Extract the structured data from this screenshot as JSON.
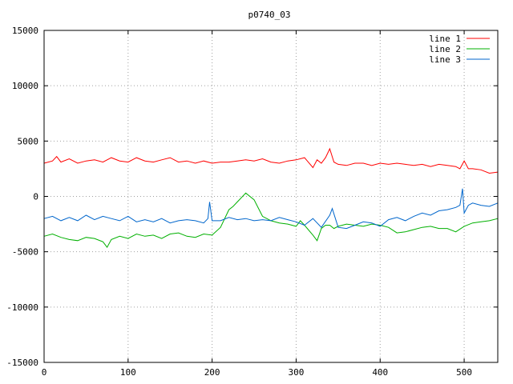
{
  "chart_data": {
    "type": "line",
    "title": "p0740_03",
    "xlabel": "",
    "ylabel": "",
    "xlim": [
      0,
      540
    ],
    "ylim": [
      -15000,
      15000
    ],
    "x_ticks": [
      0,
      100,
      200,
      300,
      400,
      500
    ],
    "y_ticks": [
      -15000,
      -10000,
      -5000,
      0,
      5000,
      10000,
      15000
    ],
    "grid": true,
    "legend_position": "top-right",
    "series": [
      {
        "name": "line 1",
        "color": "#ff0000",
        "x": [
          0,
          10,
          15,
          20,
          30,
          40,
          50,
          60,
          70,
          80,
          90,
          100,
          110,
          120,
          130,
          140,
          150,
          160,
          170,
          180,
          190,
          200,
          210,
          220,
          230,
          240,
          250,
          260,
          270,
          280,
          290,
          300,
          310,
          320,
          325,
          330,
          335,
          340,
          345,
          350,
          360,
          370,
          380,
          390,
          400,
          410,
          420,
          430,
          440,
          450,
          460,
          470,
          480,
          490,
          495,
          500,
          505,
          510,
          520,
          530,
          540
        ],
        "values": [
          3000,
          3200,
          3600,
          3100,
          3400,
          3000,
          3200,
          3300,
          3100,
          3500,
          3200,
          3100,
          3500,
          3200,
          3100,
          3300,
          3500,
          3100,
          3200,
          3000,
          3200,
          3000,
          3100,
          3100,
          3200,
          3300,
          3200,
          3400,
          3100,
          3000,
          3200,
          3300,
          3500,
          2600,
          3300,
          3000,
          3500,
          4300,
          3100,
          2900,
          2800,
          3000,
          3000,
          2800,
          3000,
          2900,
          3000,
          2900,
          2800,
          2900,
          2700,
          2900,
          2800,
          2700,
          2500,
          3200,
          2500,
          2500,
          2400,
          2100,
          2200
        ]
      },
      {
        "name": "line 2",
        "color": "#00b000",
        "x": [
          0,
          10,
          20,
          30,
          40,
          50,
          60,
          70,
          75,
          80,
          90,
          100,
          110,
          120,
          130,
          140,
          150,
          160,
          170,
          180,
          190,
          200,
          210,
          220,
          225,
          230,
          240,
          250,
          260,
          270,
          280,
          290,
          300,
          305,
          310,
          320,
          325,
          330,
          335,
          340,
          345,
          350,
          360,
          370,
          380,
          390,
          400,
          410,
          420,
          430,
          440,
          450,
          460,
          470,
          480,
          490,
          500,
          510,
          520,
          530,
          540
        ],
        "values": [
          -3600,
          -3400,
          -3700,
          -3900,
          -4000,
          -3700,
          -3800,
          -4100,
          -4600,
          -3900,
          -3600,
          -3800,
          -3400,
          -3600,
          -3500,
          -3800,
          -3400,
          -3300,
          -3600,
          -3700,
          -3400,
          -3500,
          -2800,
          -1200,
          -900,
          -500,
          300,
          -300,
          -1800,
          -2200,
          -2400,
          -2500,
          -2700,
          -2200,
          -2600,
          -3500,
          -4000,
          -2900,
          -2600,
          -2600,
          -2900,
          -2700,
          -2500,
          -2600,
          -2700,
          -2500,
          -2600,
          -2800,
          -3300,
          -3200,
          -3000,
          -2800,
          -2700,
          -2900,
          -2900,
          -3200,
          -2700,
          -2400,
          -2300,
          -2200,
          -2000
        ]
      },
      {
        "name": "line 3",
        "color": "#0066cc",
        "x": [
          0,
          10,
          20,
          30,
          40,
          50,
          60,
          70,
          80,
          90,
          100,
          110,
          120,
          130,
          140,
          150,
          160,
          170,
          180,
          190,
          195,
          197,
          200,
          210,
          220,
          230,
          240,
          250,
          260,
          270,
          280,
          290,
          300,
          310,
          320,
          330,
          340,
          343,
          350,
          360,
          370,
          380,
          390,
          400,
          410,
          420,
          430,
          440,
          450,
          460,
          470,
          480,
          490,
          495,
          498,
          500,
          505,
          510,
          520,
          530,
          540
        ],
        "values": [
          -2000,
          -1800,
          -2200,
          -1900,
          -2200,
          -1700,
          -2100,
          -1800,
          -2000,
          -2200,
          -1800,
          -2300,
          -2100,
          -2300,
          -2000,
          -2400,
          -2200,
          -2100,
          -2200,
          -2400,
          -2000,
          -500,
          -2200,
          -2200,
          -1900,
          -2100,
          -2000,
          -2200,
          -2100,
          -2200,
          -1900,
          -2100,
          -2300,
          -2600,
          -2000,
          -2800,
          -1700,
          -1100,
          -2800,
          -2900,
          -2600,
          -2300,
          -2400,
          -2700,
          -2100,
          -1900,
          -2200,
          -1800,
          -1500,
          -1700,
          -1300,
          -1200,
          -1000,
          -800,
          700,
          -1500,
          -800,
          -600,
          -800,
          -900,
          -600
        ]
      }
    ]
  }
}
